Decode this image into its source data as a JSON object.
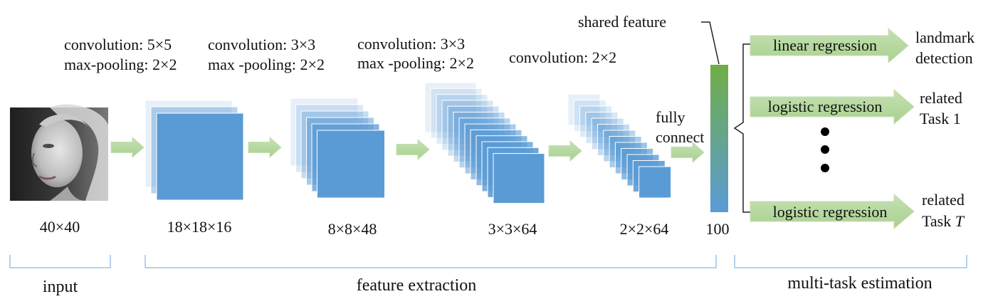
{
  "input": {
    "size_label": "40×40",
    "section_label": "input"
  },
  "layers": [
    {
      "conv": "convolution: 5×5",
      "pool": "max-pooling: 2×2",
      "size": "18×18×16"
    },
    {
      "conv": "convolution: 3×3",
      "pool": "max -pooling: 2×2",
      "size": "8×8×48"
    },
    {
      "conv": "convolution: 3×3",
      "pool": "max -pooling: 2×2",
      "size": "3×3×64"
    },
    {
      "conv": "convolution: 2×2",
      "pool": "",
      "size": "2×2×64"
    }
  ],
  "fully_connect": {
    "line1": "fully",
    "line2": "connect"
  },
  "shared": {
    "label": "shared feature",
    "size": "100"
  },
  "sections": {
    "feature": "feature extraction",
    "multitask": "multi-task estimation"
  },
  "tasks": [
    {
      "method": "linear regression",
      "line1": "landmark",
      "line2": "detection",
      "italic": ""
    },
    {
      "method": "logistic regression",
      "line1": "related",
      "line2": "Task 1",
      "italic": ""
    },
    {
      "method": "logistic regression",
      "line1": "related",
      "line2": "Task ",
      "italic": "T"
    }
  ],
  "colors": {
    "map_blue": "#5b9bd5",
    "arrow_green": "#a9d18e",
    "bracket_blue": "#9dc3e6",
    "feature_top": "#70ad47",
    "feature_bottom": "#5b9bd5"
  },
  "icons": {
    "face": "face-photo-icon"
  }
}
